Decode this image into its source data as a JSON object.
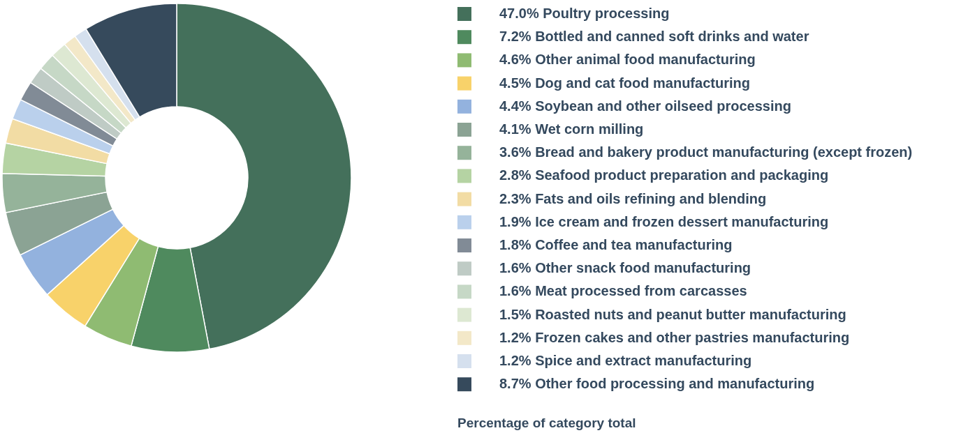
{
  "chart_data": {
    "type": "donut",
    "legend": "right",
    "categories": [
      "Poultry processing",
      "Bottled and canned soft drinks and water",
      "Other animal food manufacturing",
      "Dog and cat food manufacturing",
      "Soybean and other oilseed processing",
      "Wet corn milling",
      "Bread and bakery product manufacturing (except frozen)",
      "Seafood product preparation and packaging",
      "Fats and oils refining and blending",
      "Ice cream and frozen dessert manufacturing",
      "Coffee and tea manufacturing",
      "Other snack food manufacturing",
      "Meat processed from carcasses",
      "Roasted nuts and peanut butter manufacturing",
      "Frozen cakes and other pastries manufacturing",
      "Spice and extract manufacturing",
      "Other food processing and manufacturing"
    ],
    "values": [
      47.0,
      7.2,
      4.6,
      4.5,
      4.4,
      4.1,
      3.6,
      2.8,
      2.3,
      1.9,
      1.8,
      1.6,
      1.6,
      1.5,
      1.2,
      1.2,
      8.7
    ],
    "value_labels": [
      "47.0%",
      "7.2%",
      "4.6%",
      "4.5%",
      "4.4%",
      "4.1%",
      "3.6%",
      "2.8%",
      "2.3%",
      "1.9%",
      "1.8%",
      "1.6%",
      "1.6%",
      "1.5%",
      "1.2%",
      "1.2%",
      "8.7%"
    ],
    "colors": [
      "#44705b",
      "#4f8a5e",
      "#8fbb72",
      "#f8d26a",
      "#93b2de",
      "#8ba394",
      "#95b39a",
      "#b5d3a3",
      "#f2dca4",
      "#bad0ec",
      "#818b96",
      "#bfcbc5",
      "#c6d8c6",
      "#dde8d2",
      "#f3e8c8",
      "#d5e0ee",
      "#364a5c"
    ],
    "annotations": [
      "Percentage of category total"
    ]
  }
}
